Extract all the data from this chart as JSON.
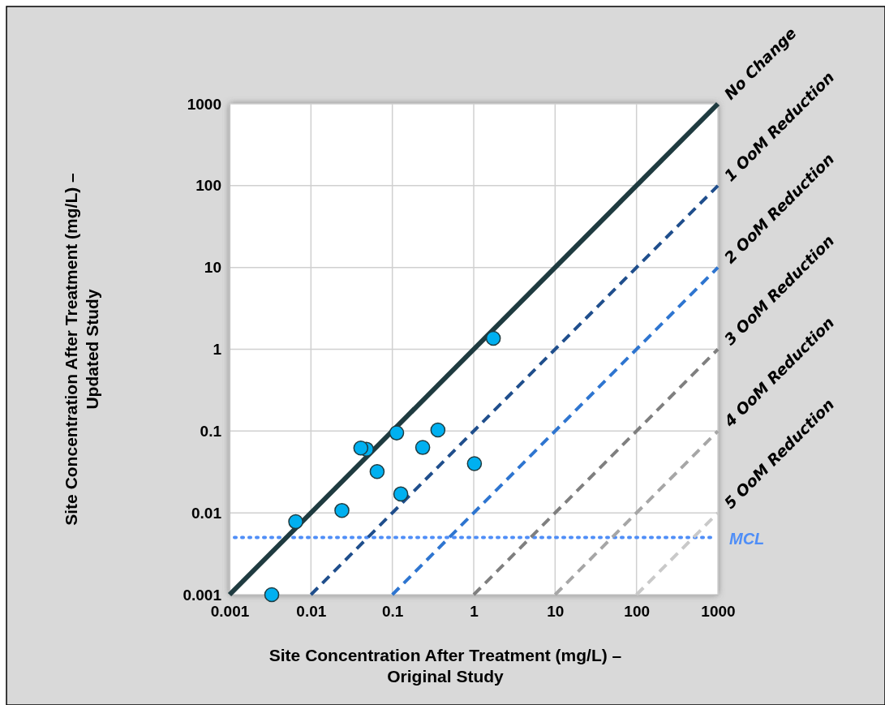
{
  "chart_data": {
    "type": "scatter",
    "xlabel": "Site Concentration After Treatment (mg/L) –\nOriginal Study",
    "ylabel": "Site Concentration After Treatment (mg/L) –\nUpdated Study",
    "log": "xy",
    "grid": true,
    "xlim": [
      0.001,
      1000
    ],
    "ylim": [
      0.001,
      1000
    ],
    "xticks": [
      0.001,
      0.01,
      0.1,
      1,
      10,
      100,
      1000
    ],
    "yticks": [
      0.001,
      0.01,
      0.1,
      1,
      10,
      100,
      1000
    ],
    "series": [
      {
        "marker": "circle",
        "color": "#00b0f0",
        "x": [
          0.0033,
          0.0065,
          0.024,
          0.041,
          0.048,
          0.065,
          0.113,
          0.127,
          0.236,
          0.363,
          1.02,
          1.74
        ],
        "values": [
          0.001,
          0.0078,
          0.0107,
          0.062,
          0.06,
          0.032,
          0.095,
          0.017,
          0.063,
          0.103,
          0.04,
          1.36
        ]
      },
      {
        "type": "line",
        "name": "No Change",
        "color": "#1f3b40",
        "line_style": "solid",
        "x": [
          0.001,
          1000
        ],
        "values": [
          0.001,
          1000
        ]
      },
      {
        "type": "line",
        "name": "1 OoM Reduction",
        "color": "#1f4e8c",
        "line_style": "dashed",
        "x": [
          0.01,
          1000
        ],
        "values": [
          0.001,
          100
        ]
      },
      {
        "type": "line",
        "name": "2 OoM Reduction",
        "color": "#2e75d0",
        "line_style": "dashed",
        "x": [
          0.1,
          1000
        ],
        "values": [
          0.001,
          10
        ]
      },
      {
        "type": "line",
        "name": "3 OoM Reduction",
        "color": "#7f7f7f",
        "line_style": "dashed",
        "x": [
          1,
          1000
        ],
        "values": [
          0.001,
          1
        ]
      },
      {
        "type": "line",
        "name": "4 OoM Reduction",
        "color": "#a6a6a6",
        "line_style": "dashed",
        "x": [
          10,
          1000
        ],
        "values": [
          0.001,
          0.1
        ]
      },
      {
        "type": "line",
        "name": "5 OoM Reduction",
        "color": "#c9c9c9",
        "line_style": "dashed",
        "x": [
          100,
          1000
        ],
        "values": [
          0.001,
          0.01
        ]
      }
    ],
    "ref_lines": [
      {
        "axis": "y",
        "value": 0.005,
        "label": "MCL",
        "color": "#4f8ef7",
        "line_style": "dotted"
      }
    ]
  }
}
